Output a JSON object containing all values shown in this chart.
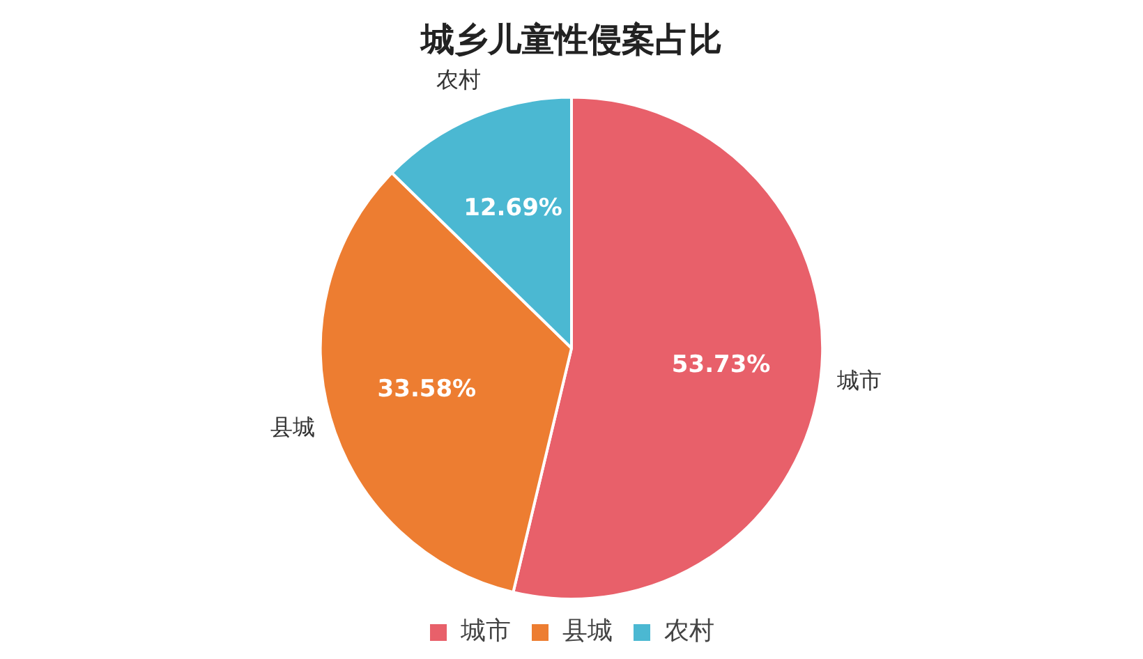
{
  "chart_data": {
    "type": "pie",
    "title": "城乡儿童性侵案占比",
    "categories": [
      "城市",
      "县城",
      "农村"
    ],
    "values": [
      53.73,
      33.58,
      12.69
    ],
    "colors": [
      "#e8606a",
      "#ed7d31",
      "#4bb8d2"
    ],
    "value_labels": [
      "53.73%",
      "33.58%",
      "12.69%"
    ],
    "legend": "bottom"
  }
}
